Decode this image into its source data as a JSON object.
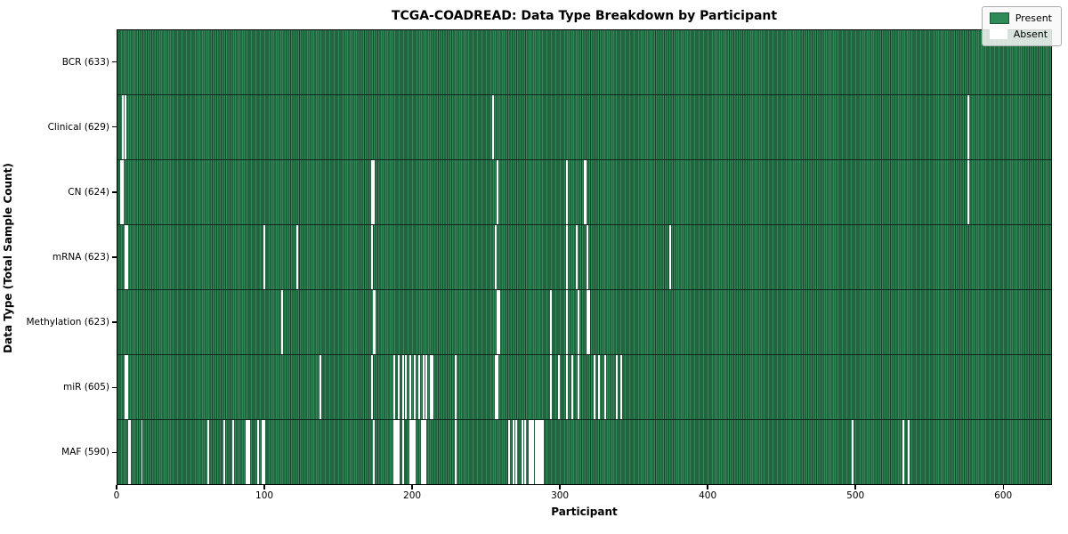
{
  "chart_data": {
    "type": "heatmap",
    "title": "TCGA-COADREAD: Data Type Breakdown by Participant",
    "xlabel": "Participant",
    "ylabel": "Data Type (Total Sample Count)",
    "n_participants": 633,
    "xticks": [
      0,
      100,
      200,
      300,
      400,
      500,
      600
    ],
    "legend": {
      "position": "upper right",
      "items": [
        {
          "label": "Present",
          "color": "#2e8b57"
        },
        {
          "label": "Absent",
          "color": "#ffffff"
        }
      ]
    },
    "present_color": "#2e8b57",
    "bar_edge_color": "#173f29",
    "rows": [
      {
        "label": "BCR (633)",
        "name": "BCR",
        "total": 633,
        "absent": []
      },
      {
        "label": "Clinical (629)",
        "name": "Clinical",
        "total": 629,
        "absent": [
          3,
          5,
          254,
          576
        ]
      },
      {
        "label": "CN (624)",
        "name": "CN",
        "total": 624,
        "absent": [
          2,
          3,
          172,
          173,
          257,
          304,
          316,
          317,
          576
        ]
      },
      {
        "label": "mRNA (623)",
        "name": "mRNA",
        "total": 623,
        "absent": [
          5,
          6,
          99,
          121,
          172,
          256,
          304,
          311,
          318,
          374
        ]
      },
      {
        "label": "Methylation (623)",
        "name": "Methylation",
        "total": 623,
        "absent": [
          111,
          173,
          174,
          257,
          258,
          293,
          304,
          312,
          318,
          319
        ]
      },
      {
        "label": "miR (605)",
        "name": "miR",
        "total": 605,
        "absent": [
          5,
          6,
          137,
          172,
          187,
          190,
          193,
          195,
          198,
          201,
          204,
          207,
          209,
          212,
          213,
          229,
          256,
          257,
          293,
          299,
          304,
          308,
          312,
          323,
          326,
          330,
          338,
          341
        ]
      },
      {
        "label": "MAF (590)",
        "name": "MAF",
        "total": 590,
        "absent": [
          7,
          8,
          16,
          61,
          72,
          78,
          87,
          88,
          89,
          95,
          98,
          99,
          173,
          187,
          188,
          189,
          190,
          193,
          198,
          199,
          200,
          201,
          206,
          207,
          208,
          229,
          265,
          268,
          270,
          274,
          276,
          279,
          280,
          281,
          283,
          284,
          285,
          286,
          287,
          288,
          498,
          532,
          536
        ]
      }
    ]
  }
}
